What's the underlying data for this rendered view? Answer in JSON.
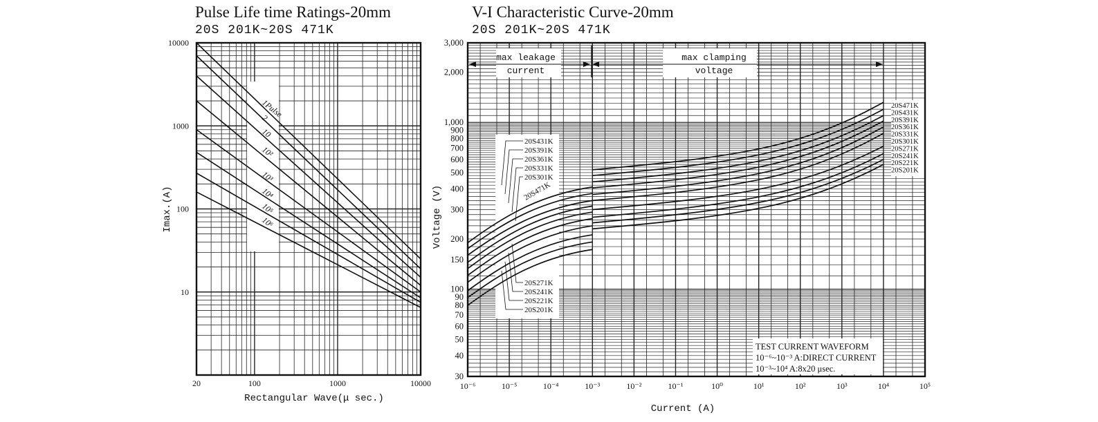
{
  "chart_data": [
    {
      "type": "line",
      "title": "Pulse Life time Ratings-20mm",
      "subtitle": "20S 201K~20S 471K",
      "xlabel": "Rectangular Wave(μ sec.)",
      "ylabel": "Imax.(A)",
      "xscale": "log",
      "yscale": "log",
      "xlim": [
        20,
        10000
      ],
      "ylim": [
        1,
        10000
      ],
      "x_ticks": [
        "20",
        "100",
        "1000",
        "10000"
      ],
      "y_ticks": [
        "10000",
        "1000",
        "100",
        "10"
      ],
      "series": [
        {
          "name": "1Pulse",
          "x": [
            20,
            10000
          ],
          "y": [
            10000,
            25
          ]
        },
        {
          "name": "2",
          "x": [
            20,
            10000
          ],
          "y": [
            7000,
            19
          ]
        },
        {
          "name": "10",
          "x": [
            20,
            10000
          ],
          "y": [
            4000,
            15
          ]
        },
        {
          "name": "10²",
          "x": [
            20,
            10000
          ],
          "y": [
            2000,
            12
          ]
        },
        {
          "name": "10³",
          "x": [
            20,
            10000
          ],
          "y": [
            900,
            10
          ]
        },
        {
          "name": "10⁴",
          "x": [
            20,
            10000
          ],
          "y": [
            480,
            8.5
          ]
        },
        {
          "name": "10⁵",
          "x": [
            20,
            10000
          ],
          "y": [
            270,
            7.5
          ]
        },
        {
          "name": "10⁶",
          "x": [
            20,
            10000
          ],
          "y": [
            160,
            6.5
          ]
        }
      ],
      "line_labels": [
        "1Pulse",
        "2",
        "10",
        "10²",
        "10³",
        "10⁴",
        "10⁵",
        "10⁶"
      ]
    },
    {
      "type": "line",
      "title": "V-I Characteristic Curve-20mm",
      "subtitle": "20S 201K~20S 471K",
      "xlabel": "Current (A)",
      "ylabel": "Voltage (V)",
      "xscale": "log",
      "yscale": "log",
      "xlim": [
        1e-06,
        100000
      ],
      "ylim": [
        30,
        3000
      ],
      "x_ticks": [
        "10⁻⁶",
        "10⁻⁵",
        "10⁻⁴",
        "10⁻³",
        "10⁻²",
        "10⁻¹",
        "10⁰",
        "10¹",
        "10²",
        "10³",
        "10⁴",
        "10⁵"
      ],
      "y_ticks": [
        "3,000",
        "2,000",
        "1,000",
        "900",
        "800",
        "700",
        "600",
        "500",
        "400",
        "300",
        "200",
        "150",
        "100",
        "90",
        "80",
        "70",
        "60",
        "50",
        "40",
        "30"
      ],
      "annotations": {
        "leakage_line1": "max leakage",
        "leakage_line2": "current",
        "clamp_line1": "max clamping",
        "clamp_line2": "voltage",
        "waveform_title": "TEST CURRENT WAVEFORM",
        "waveform_line1": "10⁻⁶~10⁻³ A:DIRECT CURRENT",
        "waveform_line2": "10⁻³~10⁴ A:8x20 μsec."
      },
      "leakage_labels_top": [
        "20S431K",
        "20S391K",
        "20S361K",
        "20S331K",
        "20S301K"
      ],
      "leakage_label_471": "20S471K",
      "leakage_labels_bottom": [
        "20S271K",
        "20S241K",
        "20S221K",
        "20S201K"
      ],
      "clamp_labels": [
        "20S471K",
        "20S431K",
        "20S391K",
        "20S361K",
        "20S331K",
        "20S301K",
        "20S271K",
        "20S241K",
        "20S221K",
        "20S201K"
      ],
      "series": [
        {
          "name": "20S471K",
          "leak_start": 190,
          "leak_end": 410,
          "clamp_start": 520,
          "clamp_end": 1320
        },
        {
          "name": "20S431K",
          "leak_start": 175,
          "leak_end": 375,
          "clamp_start": 480,
          "clamp_end": 1200
        },
        {
          "name": "20S391K",
          "leak_start": 160,
          "leak_end": 340,
          "clamp_start": 440,
          "clamp_end": 1100
        },
        {
          "name": "20S361K",
          "leak_start": 145,
          "leak_end": 315,
          "clamp_start": 405,
          "clamp_end": 1020
        },
        {
          "name": "20S331K",
          "leak_start": 133,
          "leak_end": 290,
          "clamp_start": 370,
          "clamp_end": 940
        },
        {
          "name": "20S301K",
          "leak_start": 121,
          "leak_end": 265,
          "clamp_start": 340,
          "clamp_end": 860
        },
        {
          "name": "20S271K",
          "leak_start": 110,
          "leak_end": 240,
          "clamp_start": 300,
          "clamp_end": 720
        },
        {
          "name": "20S241K",
          "leak_start": 98,
          "leak_end": 212,
          "clamp_start": 270,
          "clamp_end": 650
        },
        {
          "name": "20S221K",
          "leak_start": 89,
          "leak_end": 192,
          "clamp_start": 250,
          "clamp_end": 600
        },
        {
          "name": "20S201K",
          "leak_start": 80,
          "leak_end": 173,
          "clamp_start": 230,
          "clamp_end": 560
        }
      ]
    }
  ]
}
